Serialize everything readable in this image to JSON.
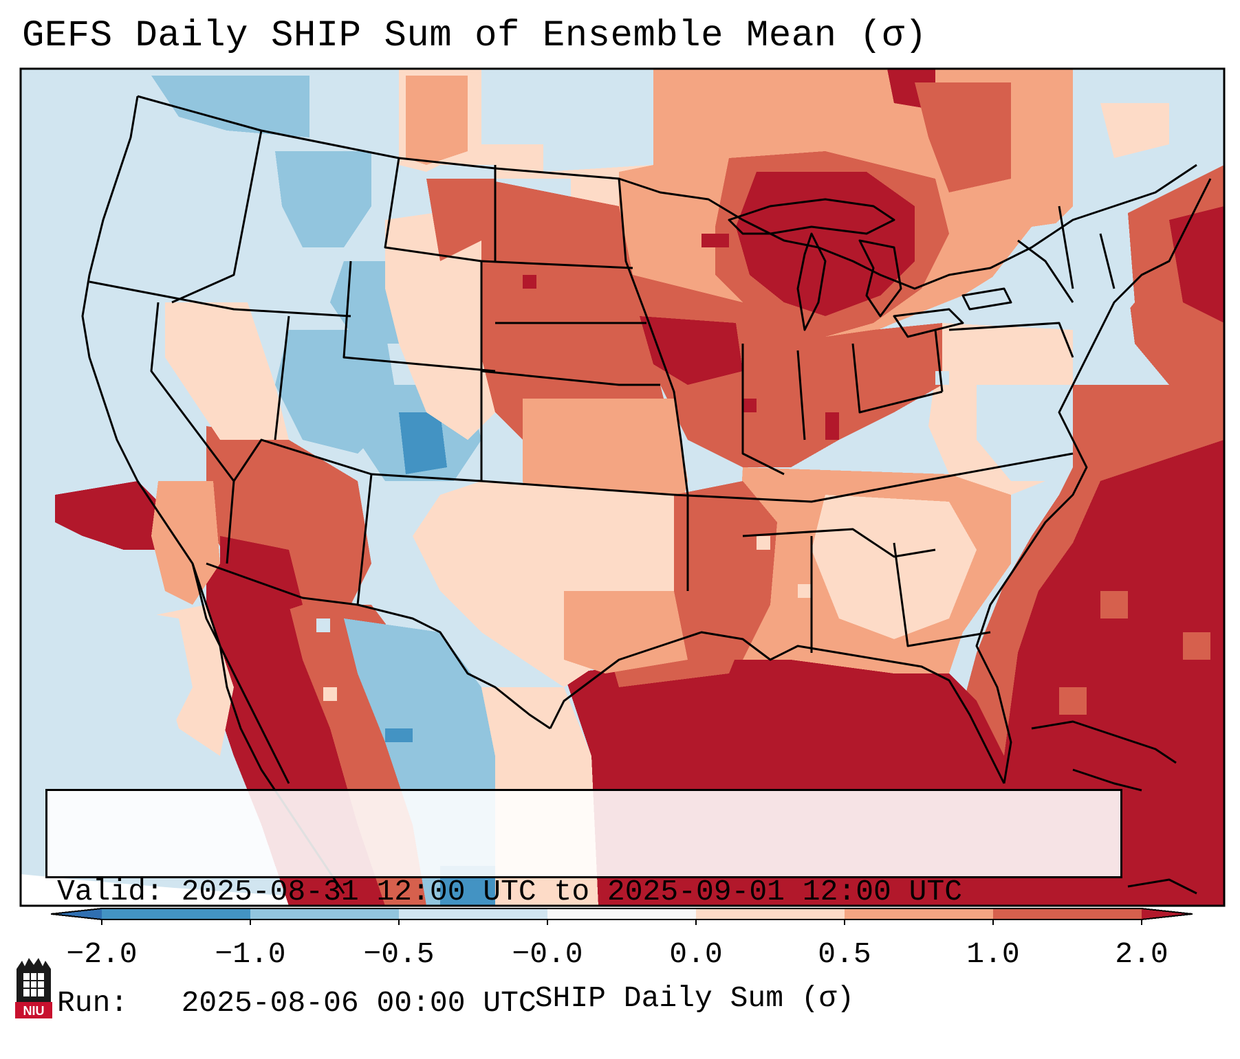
{
  "title": "GEFS Daily SHIP Sum of Ensemble Mean (σ)",
  "map": {
    "region": "Contiguous United States",
    "projection": "Lambert Conformal",
    "variable": "SHIP daily sum standardized anomaly"
  },
  "info_box": {
    "valid_line": "Valid: 2025-08-31 12:00 UTC to 2025-09-01 12:00 UTC",
    "run_line": "Run:   2025-08-06 00:00 UTC"
  },
  "colorbar": {
    "label": "SHIP Daily Sum (σ)",
    "tick_labels": [
      "−2.0",
      "−1.0",
      "−0.5",
      "−0.0",
      "0.0",
      "0.5",
      "1.0",
      "2.0"
    ],
    "bins": [
      {
        "range": "< -2.0",
        "color": "#2f6fb1"
      },
      {
        "range": "-2.0 to -1.0",
        "color": "#4393c3"
      },
      {
        "range": "-1.0 to -0.5",
        "color": "#92c5de"
      },
      {
        "range": "-0.5 to -0.0",
        "color": "#d1e5f0"
      },
      {
        "range": "-0.0 to 0.0",
        "color": "#f7f7f7"
      },
      {
        "range": "0.0 to 0.5",
        "color": "#fddbc7"
      },
      {
        "range": "0.5 to 1.0",
        "color": "#f4a582"
      },
      {
        "range": "1.0 to 2.0",
        "color": "#d6604d"
      },
      {
        "range": "> 2.0",
        "color": "#b2182b"
      }
    ]
  },
  "logo": {
    "text": "NIU",
    "colors": {
      "red": "#c8102e",
      "black": "#1a1a1a"
    }
  }
}
